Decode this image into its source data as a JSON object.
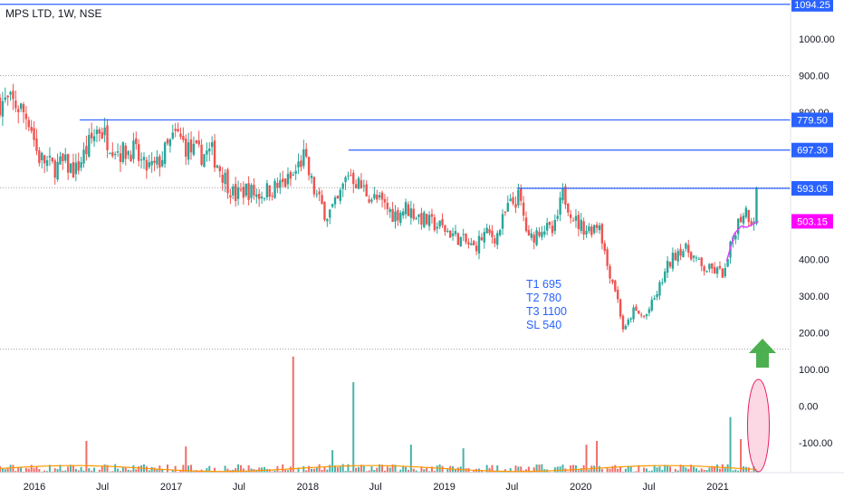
{
  "chart_data": {
    "type": "candlestick",
    "symbol_title": "MPS LTD, 1W, NSE",
    "x_ticks": [
      "2016",
      "Jul",
      "2017",
      "Jul",
      "2018",
      "Jul",
      "2019",
      "Jul",
      "2020",
      "Jul",
      "2021"
    ],
    "y_ticks": [
      1000,
      900,
      800,
      700,
      600,
      500,
      400,
      300,
      200,
      100,
      0,
      -100
    ],
    "y_tick_labels": [
      "1000.00",
      "900.00",
      "800.00",
      "700.00",
      "600.00",
      "500.00",
      "400.00",
      "300.00",
      "200.00",
      "100.00",
      "0.00",
      "-100.00"
    ],
    "ylim": [
      -185,
      1110
    ],
    "xlim": [
      "2015-10-01",
      "2021-07-15"
    ],
    "grid": false,
    "last_close": 593.05,
    "colors": {
      "up": "#26a69a",
      "down": "#ef5350",
      "level_line": "#2962ff",
      "dotted": "#9e9e9e",
      "ma_line": "#e040fb",
      "price_badge": "#ff00ff",
      "volume_ma": "#ff9800",
      "arrow": "#4caf50",
      "ellipse": "#f48fb1",
      "annotation_text": "#2962ff",
      "label_bg": "#2962ff"
    },
    "levels": [
      {
        "value": 1094.25,
        "label": "1094.25",
        "start": "2015-10-01"
      },
      {
        "value": 779.5,
        "label": "779.50",
        "start": "2016-05-01"
      },
      {
        "value": 697.3,
        "label": "697.30",
        "start": "2018-04-20"
      },
      {
        "value": 593.05,
        "label": "593.05",
        "start": "2019-07-15"
      }
    ],
    "dotted_lines": [
      {
        "value": 900,
        "label": ""
      },
      {
        "value": 595,
        "label": ""
      },
      {
        "value": 155,
        "label": ""
      }
    ],
    "ma_label": "503.15",
    "ma_value": 503.15,
    "annotation_lines": [
      "T1 695",
      "T2 780",
      "T3 1100",
      "SL 540"
    ],
    "price_path": [
      [
        "2015-10-01",
        830
      ],
      [
        "2015-11-15",
        820
      ],
      [
        "2015-12-20",
        780
      ],
      [
        "2016-01-10",
        680
      ],
      [
        "2016-02-20",
        650
      ],
      [
        "2016-03-20",
        660
      ],
      [
        "2016-04-20",
        640
      ],
      [
        "2016-05-20",
        700
      ],
      [
        "2016-06-20",
        760
      ],
      [
        "2016-07-20",
        720
      ],
      [
        "2016-08-20",
        690
      ],
      [
        "2016-09-20",
        700
      ],
      [
        "2016-10-20",
        650
      ],
      [
        "2016-11-20",
        650
      ],
      [
        "2016-12-20",
        700
      ],
      [
        "2017-01-15",
        740
      ],
      [
        "2017-02-15",
        700
      ],
      [
        "2017-03-15",
        685
      ],
      [
        "2017-04-20",
        690
      ],
      [
        "2017-05-20",
        630
      ],
      [
        "2017-06-20",
        570
      ],
      [
        "2017-07-20",
        590
      ],
      [
        "2017-08-20",
        575
      ],
      [
        "2017-09-20",
        590
      ],
      [
        "2017-10-20",
        600
      ],
      [
        "2017-11-20",
        620
      ],
      [
        "2017-12-20",
        680
      ],
      [
        "2018-01-20",
        580
      ],
      [
        "2018-02-20",
        520
      ],
      [
        "2018-03-20",
        550
      ],
      [
        "2018-04-20",
        640
      ],
      [
        "2018-05-20",
        600
      ],
      [
        "2018-06-20",
        570
      ],
      [
        "2018-07-20",
        550
      ],
      [
        "2018-08-20",
        520
      ],
      [
        "2018-09-20",
        540
      ],
      [
        "2018-10-20",
        520
      ],
      [
        "2018-11-20",
        500
      ],
      [
        "2018-12-20",
        490
      ],
      [
        "2019-01-20",
        470
      ],
      [
        "2019-02-20",
        450
      ],
      [
        "2019-03-20",
        430
      ],
      [
        "2019-04-20",
        470
      ],
      [
        "2019-05-20",
        460
      ],
      [
        "2019-06-20",
        540
      ],
      [
        "2019-07-20",
        570
      ],
      [
        "2019-08-15",
        450
      ],
      [
        "2019-09-20",
        490
      ],
      [
        "2019-10-20",
        470
      ],
      [
        "2019-11-15",
        580
      ],
      [
        "2019-12-20",
        500
      ],
      [
        "2020-01-20",
        480
      ],
      [
        "2020-02-20",
        500
      ],
      [
        "2020-03-10",
        390
      ],
      [
        "2020-04-05",
        310
      ],
      [
        "2020-04-25",
        200
      ],
      [
        "2020-05-20",
        260
      ],
      [
        "2020-06-20",
        240
      ],
      [
        "2020-07-20",
        300
      ],
      [
        "2020-08-20",
        380
      ],
      [
        "2020-09-20",
        430
      ],
      [
        "2020-10-20",
        420
      ],
      [
        "2020-11-20",
        375
      ],
      [
        "2020-12-20",
        370
      ],
      [
        "2021-01-20",
        360
      ],
      [
        "2021-02-15",
        480
      ],
      [
        "2021-03-15",
        540
      ],
      [
        "2021-04-05",
        500
      ],
      [
        "2021-04-20",
        593
      ]
    ],
    "ma_path": [
      [
        "2021-01-25",
        395
      ],
      [
        "2021-02-15",
        470
      ],
      [
        "2021-03-05",
        490
      ],
      [
        "2021-03-20",
        487
      ],
      [
        "2021-04-20",
        503.15
      ]
    ],
    "volume_spikes": [
      {
        "date": "2017-11-20",
        "value": 135,
        "dir": "down"
      },
      {
        "date": "2018-05-01",
        "value": 65,
        "dir": "up"
      },
      {
        "date": "2021-04-20",
        "value": 35,
        "dir": "up"
      },
      {
        "date": "2019-02-20",
        "value": -115,
        "dir": "up"
      },
      {
        "date": "2016-05-20",
        "value": -95,
        "dir": "down"
      },
      {
        "date": "2020-01-15",
        "value": -105,
        "dir": "down"
      },
      {
        "date": "2020-02-15",
        "value": -95,
        "dir": "down"
      },
      {
        "date": "2021-02-01",
        "value": -30,
        "dir": "up"
      },
      {
        "date": "2021-03-01",
        "value": -90,
        "dir": "down"
      },
      {
        "date": "2018-10-01",
        "value": -105,
        "dir": "up"
      },
      {
        "date": "2017-02-10",
        "value": -110,
        "dir": "down"
      },
      {
        "date": "2018-03-10",
        "value": -120,
        "dir": "up"
      }
    ]
  }
}
